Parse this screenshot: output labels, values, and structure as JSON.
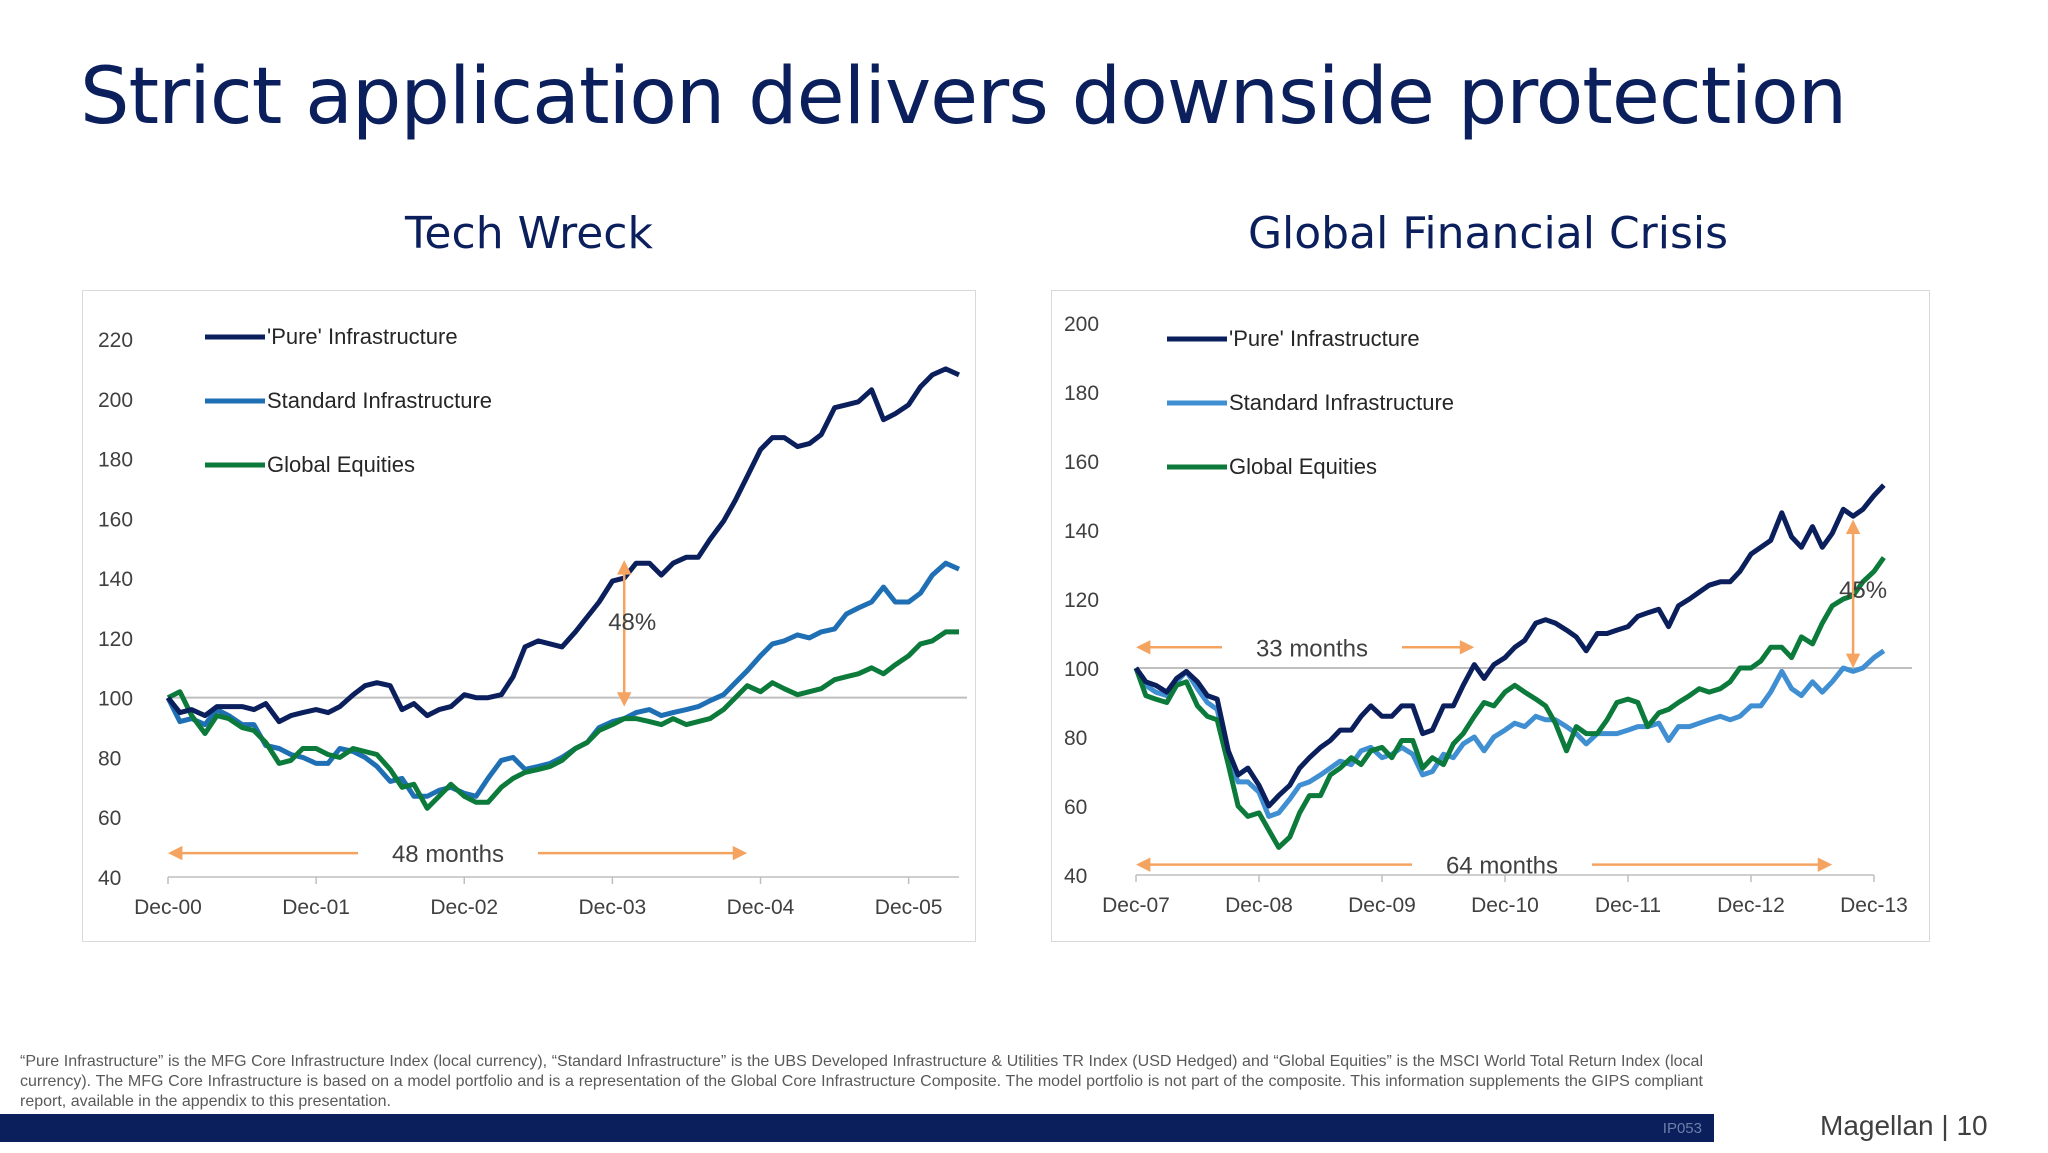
{
  "slide": {
    "title": "Strict application delivers downside protection",
    "footnote": "“Pure Infrastructure” is the MFG Core Infrastructure Index (local currency), “Standard Infrastructure” is the UBS Developed Infrastructure & Utilities TR Index  (USD Hedged) and “Global Equities” is the MSCI World Total Return Index (local currency). The MFG Core Infrastructure is based on a model portfolio and is a representation of the Global Core Infrastructure Composite. The model portfolio is not part of the composite. This information supplements the GIPS compliant report, available in the appendix to this presentation.",
    "doc_code": "IP053",
    "brand": "Magellan | 10"
  },
  "chart_data": [
    {
      "type": "line",
      "title": "Tech Wreck",
      "x_tick_labels": [
        "Dec-00",
        "Dec-01",
        "Dec-02",
        "Dec-03",
        "Dec-04",
        "Dec-05"
      ],
      "x_range_years": [
        2000.92,
        2006.26
      ],
      "ylim": [
        40,
        220
      ],
      "y_ticks": [
        40,
        60,
        80,
        100,
        120,
        140,
        160,
        180,
        200,
        220
      ],
      "baseline": 100,
      "legend_position": "top-left",
      "colors": {
        "pure": "#0a1f5c",
        "standard": "#1f6fb5",
        "equities": "#0c7a3a",
        "baseline": "#bfbfbf",
        "annotation": "#f4a460"
      },
      "series": [
        {
          "name": "'Pure' Infrastructure",
          "key": "pure",
          "x_years": [
            2000.92,
            2001.0,
            2001.08,
            2001.17,
            2001.25,
            2001.33,
            2001.42,
            2001.5,
            2001.58,
            2001.67,
            2001.75,
            2001.83,
            2001.92,
            2002.0,
            2002.08,
            2002.17,
            2002.25,
            2002.33,
            2002.42,
            2002.5,
            2002.58,
            2002.67,
            2002.75,
            2002.83,
            2002.92,
            2003.0,
            2003.08,
            2003.17,
            2003.25,
            2003.33,
            2003.42,
            2003.5,
            2003.58,
            2003.67,
            2003.75,
            2003.83,
            2003.92,
            2004.0,
            2004.08,
            2004.17,
            2004.25,
            2004.33,
            2004.42,
            2004.5,
            2004.58,
            2004.67,
            2004.75,
            2004.83,
            2004.92,
            2005.0,
            2005.08,
            2005.17,
            2005.25,
            2005.33,
            2005.42,
            2005.5,
            2005.58,
            2005.67,
            2005.75,
            2005.83,
            2005.92,
            2006.0,
            2006.08,
            2006.17,
            2006.26
          ],
          "values": [
            100,
            95,
            96,
            94,
            97,
            97,
            97,
            96,
            98,
            92,
            94,
            95,
            96,
            95,
            97,
            101,
            104,
            105,
            104,
            96,
            98,
            94,
            96,
            97,
            101,
            100,
            100,
            101,
            107,
            117,
            119,
            118,
            117,
            122,
            127,
            132,
            139,
            140,
            145,
            145,
            141,
            145,
            147,
            147,
            153,
            159,
            166,
            174,
            183,
            187,
            187,
            184,
            185,
            188,
            197,
            198,
            199,
            203,
            193,
            195,
            198,
            204,
            208,
            210,
            208
          ]
        },
        {
          "name": "Standard Infrastructure",
          "key": "standard",
          "x_years": [
            2000.92,
            2001.0,
            2001.08,
            2001.17,
            2001.25,
            2001.33,
            2001.42,
            2001.5,
            2001.58,
            2001.67,
            2001.75,
            2001.83,
            2001.92,
            2002.0,
            2002.08,
            2002.17,
            2002.25,
            2002.33,
            2002.42,
            2002.5,
            2002.58,
            2002.67,
            2002.75,
            2002.83,
            2002.92,
            2003.0,
            2003.08,
            2003.17,
            2003.25,
            2003.33,
            2003.42,
            2003.5,
            2003.58,
            2003.67,
            2003.75,
            2003.83,
            2003.92,
            2004.0,
            2004.08,
            2004.17,
            2004.25,
            2004.33,
            2004.42,
            2004.5,
            2004.58,
            2004.67,
            2004.75,
            2004.83,
            2004.92,
            2005.0,
            2005.08,
            2005.17,
            2005.25,
            2005.33,
            2005.42,
            2005.5,
            2005.58,
            2005.67,
            2005.75,
            2005.83,
            2005.92,
            2006.0,
            2006.08,
            2006.17,
            2006.26
          ],
          "values": [
            100,
            92,
            93,
            91,
            96,
            94,
            91,
            91,
            84,
            83,
            81,
            80,
            78,
            78,
            83,
            82,
            80,
            77,
            72,
            73,
            67,
            67,
            69,
            70,
            68,
            67,
            73,
            79,
            80,
            76,
            77,
            78,
            80,
            83,
            85,
            90,
            92,
            93,
            95,
            96,
            94,
            95,
            96,
            97,
            99,
            101,
            105,
            109,
            114,
            118,
            119,
            121,
            120,
            122,
            123,
            128,
            130,
            132,
            137,
            132,
            132,
            135,
            141,
            145,
            143
          ]
        },
        {
          "name": "Global Equities",
          "key": "equities",
          "x_years": [
            2000.92,
            2001.0,
            2001.08,
            2001.17,
            2001.25,
            2001.33,
            2001.42,
            2001.5,
            2001.58,
            2001.67,
            2001.75,
            2001.83,
            2001.92,
            2002.0,
            2002.08,
            2002.17,
            2002.25,
            2002.33,
            2002.42,
            2002.5,
            2002.58,
            2002.67,
            2002.75,
            2002.83,
            2002.92,
            2003.0,
            2003.08,
            2003.17,
            2003.25,
            2003.33,
            2003.42,
            2003.5,
            2003.58,
            2003.67,
            2003.75,
            2003.83,
            2003.92,
            2004.0,
            2004.08,
            2004.17,
            2004.25,
            2004.33,
            2004.42,
            2004.5,
            2004.58,
            2004.67,
            2004.75,
            2004.83,
            2004.92,
            2005.0,
            2005.08,
            2005.17,
            2005.25,
            2005.33,
            2005.42,
            2005.5,
            2005.58,
            2005.67,
            2005.75,
            2005.83,
            2005.92,
            2006.0,
            2006.08,
            2006.17,
            2006.26
          ],
          "values": [
            100,
            102,
            94,
            88,
            94,
            93,
            90,
            89,
            85,
            78,
            79,
            83,
            83,
            81,
            80,
            83,
            82,
            81,
            76,
            70,
            71,
            63,
            67,
            71,
            67,
            65,
            65,
            70,
            73,
            75,
            76,
            77,
            79,
            83,
            85,
            89,
            91,
            93,
            93,
            92,
            91,
            93,
            91,
            92,
            93,
            96,
            100,
            104,
            102,
            105,
            103,
            101,
            102,
            103,
            106,
            107,
            108,
            110,
            108,
            111,
            114,
            118,
            119,
            122,
            122
          ]
        }
      ],
      "annotations": {
        "gap_label": "48%",
        "gap_at_year": 2004.0,
        "gap_from": 97,
        "gap_to": 146,
        "span_label": "48 months",
        "span_start_year": 2000.92,
        "span_end_year": 2004.83,
        "span_y": 48
      }
    },
    {
      "type": "line",
      "title": "Global Financial Crisis",
      "x_tick_labels": [
        "Dec-07",
        "Dec-08",
        "Dec-09",
        "Dec-10",
        "Dec-11",
        "Dec-12",
        "Dec-13"
      ],
      "x_range_years": [
        2007.92,
        2013.92
      ],
      "ylim": [
        40,
        200
      ],
      "y_ticks": [
        40,
        60,
        80,
        100,
        120,
        140,
        160,
        180,
        200
      ],
      "baseline": 100,
      "legend_position": "top-left",
      "colors": {
        "pure": "#0a1f5c",
        "standard": "#3f8fd2",
        "equities": "#0c7a3a",
        "baseline": "#bfbfbf",
        "annotation": "#f4a460"
      },
      "series": [
        {
          "name": "'Pure' Infrastructure",
          "key": "pure",
          "x_years": [
            2007.92,
            2008.0,
            2008.08,
            2008.17,
            2008.25,
            2008.33,
            2008.42,
            2008.5,
            2008.58,
            2008.67,
            2008.75,
            2008.83,
            2008.92,
            2009.0,
            2009.08,
            2009.17,
            2009.25,
            2009.33,
            2009.42,
            2009.5,
            2009.58,
            2009.67,
            2009.75,
            2009.83,
            2009.92,
            2010.0,
            2010.08,
            2010.17,
            2010.25,
            2010.33,
            2010.42,
            2010.5,
            2010.58,
            2010.67,
            2010.75,
            2010.83,
            2010.92,
            2011.0,
            2011.08,
            2011.17,
            2011.25,
            2011.33,
            2011.42,
            2011.5,
            2011.58,
            2011.67,
            2011.75,
            2011.83,
            2011.92,
            2012.0,
            2012.08,
            2012.17,
            2012.25,
            2012.33,
            2012.42,
            2012.5,
            2012.58,
            2012.67,
            2012.75,
            2012.83,
            2012.92,
            2013.0,
            2013.08,
            2013.17,
            2013.25,
            2013.33,
            2013.42,
            2013.5,
            2013.58,
            2013.67,
            2013.75,
            2013.83,
            2013.92,
            2014.0
          ],
          "values": [
            100,
            96,
            95,
            93,
            97,
            99,
            96,
            92,
            91,
            76,
            69,
            71,
            66,
            60,
            63,
            66,
            71,
            74,
            77,
            79,
            82,
            82,
            86,
            89,
            86,
            86,
            89,
            89,
            81,
            82,
            89,
            89,
            95,
            101,
            97,
            101,
            103,
            106,
            108,
            113,
            114,
            113,
            111,
            109,
            105,
            110,
            110,
            111,
            112,
            115,
            116,
            117,
            112,
            118,
            120,
            122,
            124,
            125,
            125,
            128,
            133,
            135,
            137,
            145,
            138,
            135,
            141,
            135,
            139,
            146,
            144,
            146,
            150,
            153
          ]
        },
        {
          "name": "Standard Infrastructure",
          "key": "standard",
          "x_years": [
            2007.92,
            2008.0,
            2008.08,
            2008.17,
            2008.25,
            2008.33,
            2008.42,
            2008.5,
            2008.58,
            2008.67,
            2008.75,
            2008.83,
            2008.92,
            2009.0,
            2009.08,
            2009.17,
            2009.25,
            2009.33,
            2009.42,
            2009.5,
            2009.58,
            2009.67,
            2009.75,
            2009.83,
            2009.92,
            2010.0,
            2010.08,
            2010.17,
            2010.25,
            2010.33,
            2010.42,
            2010.5,
            2010.58,
            2010.67,
            2010.75,
            2010.83,
            2010.92,
            2011.0,
            2011.08,
            2011.17,
            2011.25,
            2011.33,
            2011.42,
            2011.5,
            2011.58,
            2011.67,
            2011.75,
            2011.83,
            2011.92,
            2012.0,
            2012.08,
            2012.17,
            2012.25,
            2012.33,
            2012.42,
            2012.5,
            2012.58,
            2012.67,
            2012.75,
            2012.83,
            2012.92,
            2013.0,
            2013.08,
            2013.17,
            2013.25,
            2013.33,
            2013.42,
            2013.5,
            2013.58,
            2013.67,
            2013.75,
            2013.83,
            2013.92,
            2014.0
          ],
          "values": [
            100,
            95,
            93,
            92,
            96,
            99,
            94,
            90,
            88,
            74,
            67,
            67,
            64,
            57,
            58,
            62,
            66,
            67,
            69,
            71,
            73,
            72,
            76,
            77,
            74,
            75,
            77,
            75,
            69,
            70,
            75,
            74,
            78,
            80,
            76,
            80,
            82,
            84,
            83,
            86,
            85,
            85,
            83,
            81,
            78,
            81,
            81,
            81,
            82,
            83,
            83,
            84,
            79,
            83,
            83,
            84,
            85,
            86,
            85,
            86,
            89,
            89,
            93,
            99,
            94,
            92,
            96,
            93,
            96,
            100,
            99,
            100,
            103,
            105
          ]
        },
        {
          "name": "Global Equities",
          "key": "equities",
          "x_years": [
            2007.92,
            2008.0,
            2008.08,
            2008.17,
            2008.25,
            2008.33,
            2008.42,
            2008.5,
            2008.58,
            2008.67,
            2008.75,
            2008.83,
            2008.92,
            2009.0,
            2009.08,
            2009.17,
            2009.25,
            2009.33,
            2009.42,
            2009.5,
            2009.58,
            2009.67,
            2009.75,
            2009.83,
            2009.92,
            2010.0,
            2010.08,
            2010.17,
            2010.25,
            2010.33,
            2010.42,
            2010.5,
            2010.58,
            2010.67,
            2010.75,
            2010.83,
            2010.92,
            2011.0,
            2011.08,
            2011.17,
            2011.25,
            2011.33,
            2011.42,
            2011.5,
            2011.58,
            2011.67,
            2011.75,
            2011.83,
            2011.92,
            2012.0,
            2012.08,
            2012.17,
            2012.25,
            2012.33,
            2012.42,
            2012.5,
            2012.58,
            2012.67,
            2012.75,
            2012.83,
            2012.92,
            2013.0,
            2013.08,
            2013.17,
            2013.25,
            2013.33,
            2013.42,
            2013.5,
            2013.58,
            2013.67,
            2013.75,
            2013.83,
            2013.92,
            2014.0
          ],
          "values": [
            100,
            92,
            91,
            90,
            95,
            96,
            89,
            86,
            85,
            72,
            60,
            57,
            58,
            53,
            48,
            51,
            58,
            63,
            63,
            69,
            71,
            74,
            72,
            76,
            77,
            74,
            79,
            79,
            71,
            74,
            72,
            78,
            81,
            86,
            90,
            89,
            93,
            95,
            93,
            91,
            89,
            84,
            76,
            83,
            81,
            81,
            85,
            90,
            91,
            90,
            83,
            87,
            88,
            90,
            92,
            94,
            93,
            94,
            96,
            100,
            100,
            102,
            106,
            106,
            103,
            109,
            107,
            113,
            118,
            120,
            121,
            125,
            128,
            132
          ]
        }
      ],
      "annotations": {
        "gap_label": "45%",
        "gap_at_year": 2013.75,
        "gap_from": 100,
        "gap_to": 143,
        "span_label": "64 months",
        "span_start_year": 2007.92,
        "span_end_year": 2013.58,
        "span_y": 43,
        "span2_label": "33 months",
        "span2_start_year": 2007.92,
        "span2_end_year": 2010.67,
        "span2_y": 106
      }
    }
  ]
}
